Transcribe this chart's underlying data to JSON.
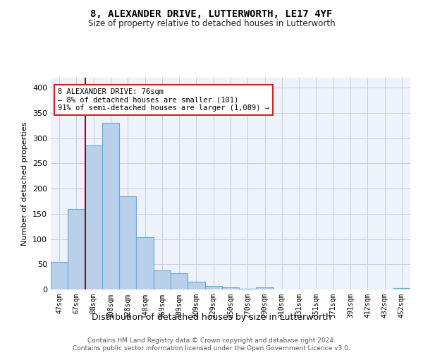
{
  "title": "8, ALEXANDER DRIVE, LUTTERWORTH, LE17 4YF",
  "subtitle": "Size of property relative to detached houses in Lutterworth",
  "xlabel": "Distribution of detached houses by size in Lutterworth",
  "ylabel": "Number of detached properties",
  "categories": [
    "47sqm",
    "67sqm",
    "88sqm",
    "108sqm",
    "128sqm",
    "148sqm",
    "169sqm",
    "189sqm",
    "209sqm",
    "229sqm",
    "250sqm",
    "270sqm",
    "290sqm",
    "310sqm",
    "331sqm",
    "351sqm",
    "371sqm",
    "391sqm",
    "412sqm",
    "432sqm",
    "452sqm"
  ],
  "values": [
    55,
    160,
    285,
    330,
    185,
    103,
    38,
    32,
    15,
    7,
    4,
    2,
    4,
    0,
    0,
    0,
    0,
    0,
    0,
    0,
    3
  ],
  "bar_color": "#b8d0ea",
  "bar_edge_color": "#6aaad4",
  "marker_line_color": "#aa0000",
  "annotation_line1": "8 ALEXANDER DRIVE: 76sqm",
  "annotation_line2": "← 8% of detached houses are smaller (101)",
  "annotation_line3": "91% of semi-detached houses are larger (1,089) →",
  "annotation_box_color": "#ffffff",
  "annotation_box_edge_color": "#cc2222",
  "ylim": [
    0,
    420
  ],
  "yticks": [
    0,
    50,
    100,
    150,
    200,
    250,
    300,
    350,
    400
  ],
  "background_color": "#eef2fa",
  "grid_color": "#c8cce0",
  "footer_line1": "Contains HM Land Registry data © Crown copyright and database right 2024.",
  "footer_line2": "Contains public sector information licensed under the Open Government Licence v3.0."
}
